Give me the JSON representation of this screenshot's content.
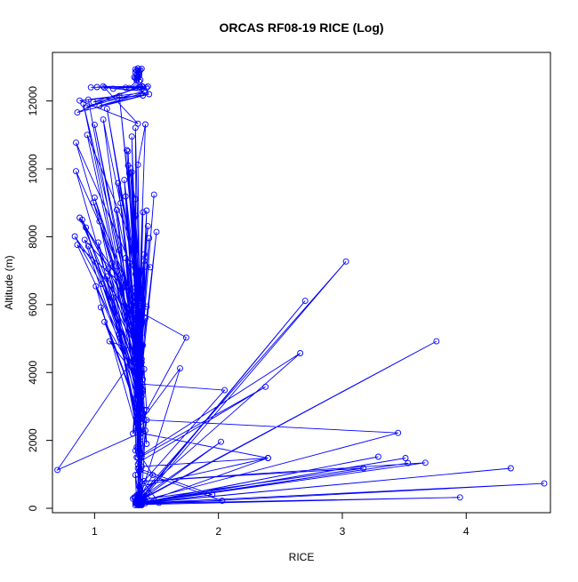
{
  "chart_data": {
    "type": "line",
    "title": "ORCAS RF08-19 RICE (Log)",
    "xlabel": "RICE",
    "ylabel": "Altitude (m)",
    "xlim": [
      0.66,
      4.68
    ],
    "ylim": [
      -130,
      13430
    ],
    "x_ticks": [
      1,
      2,
      3,
      4
    ],
    "y_ticks": [
      0,
      2000,
      4000,
      6000,
      8000,
      10000,
      12000
    ],
    "grid": false,
    "legend": "none",
    "line_color": "#0000ff",
    "marker": "open-circle",
    "series": [
      {
        "x": [
          1.35,
          1.31,
          1.38,
          1.34,
          1.36,
          1.33,
          1.42,
          1.36,
          1.4,
          1.35,
          1.33,
          1.38,
          1.35,
          1.37,
          1.36,
          1.34,
          1.38,
          1.36,
          1.35,
          1.41,
          1.35,
          1.36,
          1.38,
          1.34,
          1.33,
          1.37,
          1.36,
          1.35,
          1.4,
          1.34,
          1.37,
          1.36,
          1.33,
          1.41,
          1.38,
          1.35,
          1.34,
          1.37,
          1.36,
          1.35,
          1.52,
          1.38,
          1.36,
          2.03,
          1.37,
          3.29,
          1.35,
          3.95,
          1.38,
          4.63,
          1.36,
          4.36,
          1.35,
          3.53,
          1.37,
          3.51,
          1.34,
          1.33,
          1.36,
          1.32,
          1.36,
          1.38,
          2.4,
          1.36,
          1.33,
          2.02,
          1.34,
          2.7,
          1.35,
          1.35,
          1.95,
          1.36,
          1.37,
          3.17,
          1.4,
          3.67,
          1.36,
          1.35,
          1.47,
          1.35,
          1.38,
          1.41,
          0.7,
          1.34,
          1.36,
          3.03,
          1.35,
          1.42,
          3.45,
          1.36,
          1.35,
          2.66,
          1.36,
          1.34,
          3.76,
          1.4,
          1.34,
          1.38,
          2.38,
          1.36,
          1.33,
          1.34,
          1.74,
          1.37,
          1.69,
          1.36,
          1.4,
          1.38,
          2.05,
          1.36,
          2.4,
          1.34,
          1.35,
          1.37,
          1.38,
          1.33,
          1.36,
          1.41,
          1.34,
          1.37,
          1.39,
          1.35,
          1.42,
          1.36,
          1.33,
          1.38,
          1.35,
          1.36,
          1.34,
          1.37,
          1.4,
          1.31,
          1.38,
          1.34,
          1.36,
          1.35,
          1.42,
          1.33,
          1.37,
          1.35,
          1.38,
          1.36,
          1.34,
          1.39,
          1.35,
          1.37,
          1.36,
          1.34,
          1.4,
          1.35,
          1.33,
          1.38,
          1.35,
          1.36,
          1.34,
          1.37,
          1.38,
          1.35,
          1.36,
          1.39,
          1.34,
          1.36,
          1.38,
          1.35,
          1.37,
          1.34,
          1.39,
          1.36,
          1.35,
          1.37,
          1.34,
          1.36,
          1.35,
          1.38,
          1.36,
          1.12,
          1.35,
          1.08,
          1.33,
          1.05,
          1.36,
          1.15,
          1.38,
          1.01,
          1.34,
          1.2,
          1.37,
          1.11,
          1.35,
          1.18,
          1.39,
          1.14,
          1.34,
          1.06,
          1.36,
          1.22,
          1.33,
          1.1,
          1.37,
          1.03,
          1.35,
          0.95,
          1.36,
          1.25,
          1.38,
          1.2,
          1.34,
          1.28,
          1.36,
          1.4,
          1.45,
          1.38,
          1.35,
          1.42,
          1.3,
          1.37,
          0.88,
          1.33,
          0.84,
          1.36,
          0.9,
          1.35,
          0.86,
          1.38,
          0.92,
          1.34,
          1.04,
          1.37,
          0.99,
          1.36,
          0.85,
          1.4,
          0.93,
          1.35,
          1.0,
          1.38,
          1.32,
          1.36,
          1.48,
          1.34,
          1.42,
          1.38,
          1.5,
          1.35,
          1.44,
          1.37,
          1.33,
          1.36,
          1.43,
          1.35,
          1.39,
          1.36,
          1.21,
          1.34,
          1.28,
          1.37,
          1.18,
          1.35,
          1.25,
          1.36,
          1.3,
          1.38,
          1.19,
          1.34,
          1.33,
          1.27,
          1.36,
          1.24,
          1.35,
          1.3,
          1.36,
          1.27,
          1.34,
          1.33,
          1.38,
          1.29,
          1.35,
          1.26,
          1.37,
          1.35,
          1.41,
          1.36,
          1.1,
          1.34,
          0.85,
          1.37,
          1.0,
          1.32,
          0.91,
          1.39,
          0.94,
          1.33,
          1.2,
          1.36,
          1.07,
          1.35,
          0.95,
          1.39,
          1.04,
          1.41,
          0.88,
          1.35,
          1.08,
          1.4,
          0.93,
          1.38,
          1.15,
          1.36,
          1.07,
          1.42,
          1.02,
          1.33,
          0.86,
          1.44,
          0.99,
          1.39,
          0.97,
          1.37,
          1.25,
          1.43,
          1.28,
          1.34,
          1.32,
          1.36,
          1.33,
          1.35,
          1.37,
          1.36,
          1.34,
          1.33,
          1.36,
          1.38,
          1.35,
          1.34,
          1.36,
          1.37,
          1.35,
          1.33,
          1.36,
          1.34,
          1.35
        ],
        "y": [
          120,
          280,
          90,
          380,
          220,
          150,
          470,
          160,
          240,
          90,
          310,
          130,
          200,
          510,
          150,
          120,
          340,
          180,
          260,
          150,
          110,
          430,
          220,
          170,
          90,
          290,
          150,
          380,
          230,
          140,
          200,
          120,
          310,
          210,
          150,
          260,
          190,
          130,
          90,
          1000,
          160,
          440,
          1100,
          220,
          160,
          1520,
          140,
          320,
          110,
          730,
          150,
          1180,
          140,
          1330,
          160,
          1480,
          130,
          980,
          240,
          320,
          180,
          1230,
          1480,
          120,
          200,
          1960,
          150,
          6110,
          160,
          1180,
          400,
          140,
          250,
          1180,
          800,
          1340,
          150,
          230,
          980,
          1680,
          330,
          2290,
          1130,
          4560,
          160,
          7270,
          300,
          2600,
          2220,
          200,
          1500,
          4570,
          390,
          170,
          4920,
          310,
          260,
          1530,
          3580,
          1360,
          1700,
          5840,
          5030,
          2540,
          4120,
          230,
          2600,
          3660,
          3480,
          640,
          1480,
          2240,
          4850,
          1130,
          3980,
          6500,
          2600,
          5600,
          4420,
          7000,
          3450,
          1750,
          2900,
          6200,
          5700,
          3900,
          1300,
          5900,
          6800,
          2300,
          7480,
          2200,
          4050,
          6600,
          5200,
          3700,
          1900,
          6900,
          4200,
          3450,
          5500,
          1200,
          6700,
          4800,
          2600,
          5200,
          2300,
          6300,
          4100,
          3600,
          5900,
          1600,
          4700,
          3300,
          6000,
          2800,
          4400,
          5400,
          2300,
          3800,
          1500,
          3100,
          5800,
          4300,
          2100,
          3700,
          2700,
          4900,
          3200,
          5300,
          1800,
          6100,
          2400,
          3500,
          4600,
          4920,
          3800,
          5490,
          3100,
          5920,
          2700,
          6210,
          3400,
          6540,
          2300,
          5140,
          1900,
          7050,
          4600,
          6980,
          2800,
          7220,
          4100,
          6610,
          3300,
          6450,
          5100,
          6830,
          2200,
          7830,
          4200,
          7720,
          3600,
          7370,
          1600,
          7600,
          4400,
          7230,
          2700,
          7290,
          7100,
          6990,
          6160,
          5940,
          5980,
          5750,
          8560,
          4800,
          8010,
          5300,
          8500,
          3900,
          7760,
          6100,
          7910,
          3300,
          8450,
          4600,
          9010,
          5800,
          9930,
          2900,
          8270,
          5400,
          9150,
          4300,
          8570,
          3800,
          9240,
          2800,
          8770,
          4000,
          8140,
          3400,
          7960,
          5100,
          8620,
          6200,
          8310,
          4400,
          8720,
          3600,
          8990,
          5200,
          9870,
          3100,
          8790,
          5700,
          9190,
          3900,
          9900,
          6200,
          9580,
          4800,
          9110,
          10100,
          5900,
          9670,
          3700,
          10950,
          4600,
          10520,
          5100,
          11210,
          3300,
          10010,
          5200,
          10550,
          4000,
          10120,
          11310,
          6100,
          11770,
          6800,
          10770,
          4300,
          11300,
          5600,
          11920,
          3500,
          11000,
          7600,
          12150,
          6300,
          11450,
          4000,
          12040,
          12160,
          11860,
          12250,
          12010,
          11330,
          12390,
          12290,
          11810,
          12440,
          12360,
          12420,
          12430,
          12390,
          12410,
          12390,
          11660,
          12200,
          11970,
          12420,
          12400,
          12410,
          12390,
          12430,
          12380,
          12600,
          12700,
          12860,
          12930,
          12960,
          12620,
          12750,
          12890,
          12680,
          12830,
          12950,
          12720,
          12640,
          12780,
          12910,
          12690,
          12840,
          12580,
          12770,
          12900
        ]
      }
    ]
  }
}
